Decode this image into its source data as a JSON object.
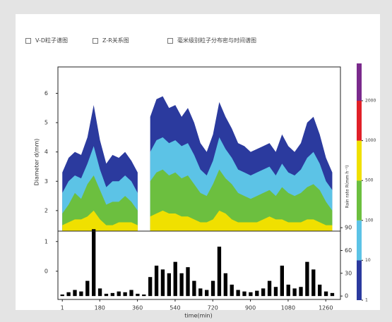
{
  "options": [
    "V-D粒子谱图",
    "Z-R关系图",
    "毫米级别粒子分布密与时间谱图"
  ],
  "chart_data": {
    "type": "spectrogram",
    "ylabel": "Diameter d(mm)",
    "xlabel": "time(min)",
    "y2label": "Rain rate R(mm h⁻¹)",
    "x": [
      1,
      31,
      61,
      91,
      121,
      151,
      181,
      211,
      241,
      271,
      301,
      331,
      361,
      391,
      421,
      451,
      481,
      511,
      541,
      571,
      601,
      631,
      661,
      691,
      721,
      751,
      781,
      811,
      841,
      871,
      901,
      931,
      961,
      991,
      1021,
      1051,
      1081,
      1111,
      1141,
      1171,
      1201,
      1231,
      1261,
      1291
    ],
    "series": [
      {
        "color": "#2b3a9e",
        "values": [
          3.3,
          3.8,
          4.0,
          3.9,
          4.5,
          5.6,
          4.4,
          3.6,
          3.9,
          3.8,
          4.0,
          3.7,
          3.3,
          null,
          5.2,
          5.8,
          5.9,
          5.5,
          5.6,
          5.2,
          5.5,
          5.0,
          4.3,
          4.0,
          4.6,
          5.7,
          5.2,
          4.8,
          4.3,
          4.2,
          4.0,
          4.1,
          4.2,
          4.3,
          4.0,
          4.6,
          4.2,
          4.0,
          4.3,
          5.0,
          5.2,
          4.6,
          3.8,
          3.3
        ]
      },
      {
        "color": "#5cc3e6",
        "values": [
          2.6,
          3.0,
          3.2,
          3.1,
          3.6,
          4.2,
          3.4,
          2.8,
          3.0,
          3.0,
          3.2,
          3.0,
          2.6,
          null,
          4.0,
          4.4,
          4.5,
          4.3,
          4.4,
          4.2,
          4.3,
          3.9,
          3.4,
          3.2,
          3.7,
          4.5,
          4.1,
          3.8,
          3.4,
          3.3,
          3.2,
          3.3,
          3.4,
          3.5,
          3.2,
          3.6,
          3.3,
          3.2,
          3.4,
          3.8,
          4.0,
          3.6,
          3.0,
          2.7
        ]
      },
      {
        "color": "#6cbf3f",
        "values": [
          1.9,
          2.2,
          2.6,
          2.4,
          2.9,
          3.2,
          2.7,
          2.2,
          2.3,
          2.3,
          2.5,
          2.3,
          2.0,
          null,
          3.0,
          3.3,
          3.4,
          3.2,
          3.3,
          3.1,
          3.2,
          2.9,
          2.6,
          2.5,
          2.9,
          3.4,
          3.1,
          2.9,
          2.6,
          2.5,
          2.4,
          2.5,
          2.6,
          2.7,
          2.5,
          2.8,
          2.6,
          2.5,
          2.6,
          2.8,
          2.9,
          2.7,
          2.3,
          2.0
        ]
      },
      {
        "color": "#f0e000",
        "values": [
          1.5,
          1.6,
          1.7,
          1.7,
          1.8,
          2.0,
          1.7,
          1.5,
          1.5,
          1.6,
          1.6,
          1.6,
          1.5,
          null,
          1.8,
          1.9,
          2.0,
          1.9,
          1.9,
          1.8,
          1.8,
          1.7,
          1.6,
          1.6,
          1.7,
          2.0,
          1.9,
          1.7,
          1.6,
          1.6,
          1.6,
          1.6,
          1.7,
          1.8,
          1.7,
          1.7,
          1.6,
          1.6,
          1.6,
          1.7,
          1.7,
          1.6,
          1.5,
          1.5
        ]
      }
    ],
    "rain": {
      "color": "#000000",
      "values": [
        2,
        5,
        8,
        6,
        20,
        88,
        10,
        3,
        4,
        6,
        5,
        8,
        3,
        2,
        25,
        40,
        35,
        30,
        45,
        30,
        38,
        20,
        10,
        8,
        20,
        65,
        30,
        15,
        8,
        6,
        5,
        7,
        10,
        20,
        12,
        40,
        15,
        10,
        12,
        45,
        35,
        15,
        6,
        4
      ]
    },
    "xlim": [
      -20,
      1330
    ],
    "xticks": [
      1,
      180,
      360,
      540,
      720,
      900,
      1080,
      1260
    ],
    "ylim": [
      1.3,
      6.9
    ],
    "yticks": [
      2,
      3,
      4,
      5,
      6
    ],
    "y2lim": [
      -4.5,
      85.5
    ],
    "y2ticks": [
      0,
      30,
      60,
      90
    ],
    "y3lim": [
      -0.95,
      1.35
    ],
    "y3ticks": [
      0,
      1
    ],
    "colorbar": {
      "ticks": [
        1,
        10,
        100,
        500,
        1000,
        2000
      ],
      "colors": [
        "#2b3a9e",
        "#5cc3e6",
        "#6cbf3f",
        "#f0e000",
        "#e02028",
        "#7a2a8c"
      ]
    }
  }
}
